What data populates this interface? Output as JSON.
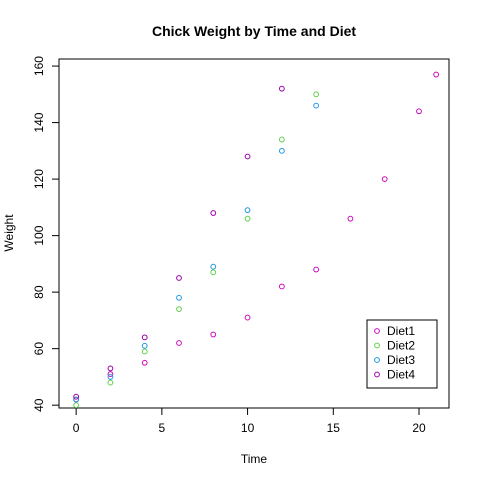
{
  "chart_data": {
    "type": "scatter",
    "title": "Chick Weight by Time and Diet",
    "xlabel": "Time",
    "ylabel": "Weight",
    "xlim": [
      -1,
      21.75
    ],
    "ylim": [
      39,
      162.5
    ],
    "xticks": [
      0,
      5,
      10,
      15,
      20
    ],
    "yticks": [
      40,
      60,
      80,
      100,
      120,
      140,
      160
    ],
    "grid": false,
    "legend_position": "bottom-right",
    "series": [
      {
        "name": "Diet1",
        "color": "#CD0BBC",
        "marker": "open-circle",
        "x": [
          0,
          2,
          4,
          6,
          8,
          10,
          12,
          14,
          16,
          18,
          20,
          21
        ],
        "y": [
          42,
          51,
          55,
          62,
          65,
          71,
          82,
          88,
          106,
          120,
          144,
          157
        ]
      },
      {
        "name": "Diet2",
        "color": "#61D04F",
        "marker": "open-circle",
        "x": [
          0,
          2,
          4,
          6,
          8,
          10,
          12,
          14
        ],
        "y": [
          40,
          48,
          59,
          74,
          87,
          106,
          134,
          150
        ]
      },
      {
        "name": "Diet3",
        "color": "#2297E6",
        "marker": "open-circle",
        "x": [
          0,
          2,
          4,
          6,
          8,
          10,
          12,
          14
        ],
        "y": [
          42,
          50,
          61,
          78,
          89,
          109,
          130,
          146
        ]
      },
      {
        "name": "Diet4",
        "color": "#9900AA",
        "marker": "open-circle",
        "x": [
          0,
          2,
          4,
          6,
          8,
          10,
          12
        ],
        "y": [
          43,
          53,
          64,
          85,
          108,
          128,
          152
        ]
      }
    ]
  }
}
